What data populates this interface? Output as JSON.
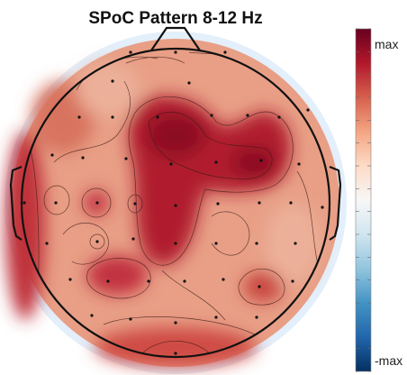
{
  "chart_data": {
    "type": "heatmap",
    "title": "SPoC Pattern 8-12 Hz",
    "colorbar": {
      "max_label": "max",
      "min_label": "-max",
      "colormap": [
        "#053061",
        "#2166ac",
        "#4393c3",
        "#92c5de",
        "#d1e5f0",
        "#f7f7f7",
        "#fddbc7",
        "#f4a582",
        "#d6604d",
        "#b2182b",
        "#67001f"
      ]
    },
    "colors": {
      "head_outline": "#111111",
      "outer_ring": "#e3effa",
      "contour": "#3a1a14",
      "electrode": "#111111"
    }
  }
}
